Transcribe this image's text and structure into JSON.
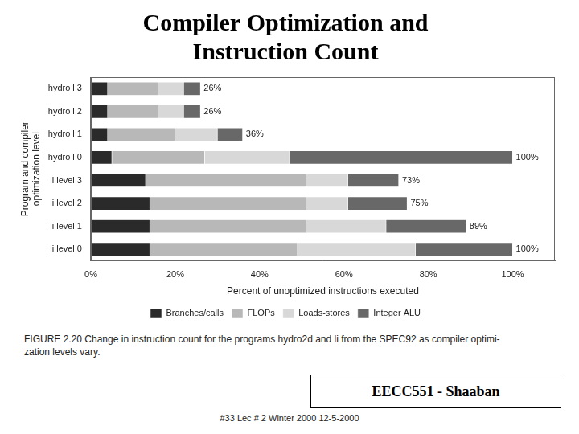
{
  "chart_data": {
    "type": "bar",
    "orientation": "horizontal",
    "stacked": true,
    "title": [
      "Compiler Optimization and",
      "Instruction Count"
    ],
    "xlabel": "Percent of unoptimized instructions executed",
    "ylabel": "Program and compiler\noptimization level",
    "categories": [
      "li level 0",
      "li level 1",
      "li level 2",
      "li level 3",
      "hydro l 0",
      "hydro l 1",
      "hydro l 2",
      "hydro l 3"
    ],
    "series": [
      {
        "name": "Branches/calls",
        "color": "#2a2a2a",
        "values": [
          14,
          14,
          14,
          13,
          5,
          4,
          4,
          4
        ]
      },
      {
        "name": "FLOPs",
        "color": "#b8b8b8",
        "values": [
          35,
          37,
          37,
          38,
          22,
          16,
          12,
          12
        ]
      },
      {
        "name": "Loads-stores",
        "color": "#d8d8d8",
        "values": [
          28,
          19,
          10,
          10,
          20,
          10,
          6,
          6
        ]
      },
      {
        "name": "Integer ALU",
        "color": "#686868",
        "values": [
          23,
          19,
          14,
          12,
          53,
          6,
          4,
          4
        ]
      }
    ],
    "totals": [
      100,
      89,
      75,
      73,
      100,
      36,
      26,
      26
    ],
    "total_labels": [
      "100%",
      "89%",
      "75%",
      "73%",
      "100%",
      "36%",
      "26%",
      "26%"
    ],
    "xlim": [
      0,
      110
    ],
    "xticks": [
      {
        "value": 0,
        "label": "0%"
      },
      {
        "value": 20,
        "label": "20%"
      },
      {
        "value": 40,
        "label": "40%"
      },
      {
        "value": 60,
        "label": "60%"
      },
      {
        "value": 80,
        "label": "80%"
      },
      {
        "value": 100,
        "label": "100%"
      }
    ],
    "grid": false,
    "legend": "bottom",
    "caption": "FIGURE 2.20  Change in instruction count for the programs hydro2d and li from the SPEC92 as compiler optimi-\nzation levels vary.",
    "annotations": [
      "EECC551 - Shaaban",
      "#33   Lec # 2   Winter 2000  12-5-2000"
    ]
  }
}
